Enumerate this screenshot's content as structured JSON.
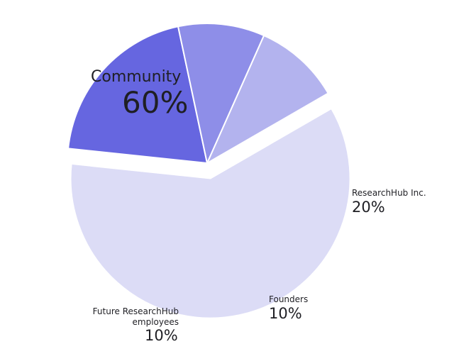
{
  "chart_data": {
    "type": "pie",
    "title": "",
    "slices": [
      {
        "label": "Community",
        "value": 60,
        "value_label": "60%",
        "color": "#dcdcf6"
      },
      {
        "label": "ResearchHub Inc.",
        "value": 20,
        "value_label": "20%",
        "color": "#6666e0"
      },
      {
        "label": "Founders",
        "value": 10,
        "value_label": "10%",
        "color": "#8e8ee8"
      },
      {
        "label": "Future ResearchHub employees",
        "value": 10,
        "value_label": "10%",
        "color": "#b3b3ee"
      }
    ],
    "exploded_slice": "Community"
  }
}
